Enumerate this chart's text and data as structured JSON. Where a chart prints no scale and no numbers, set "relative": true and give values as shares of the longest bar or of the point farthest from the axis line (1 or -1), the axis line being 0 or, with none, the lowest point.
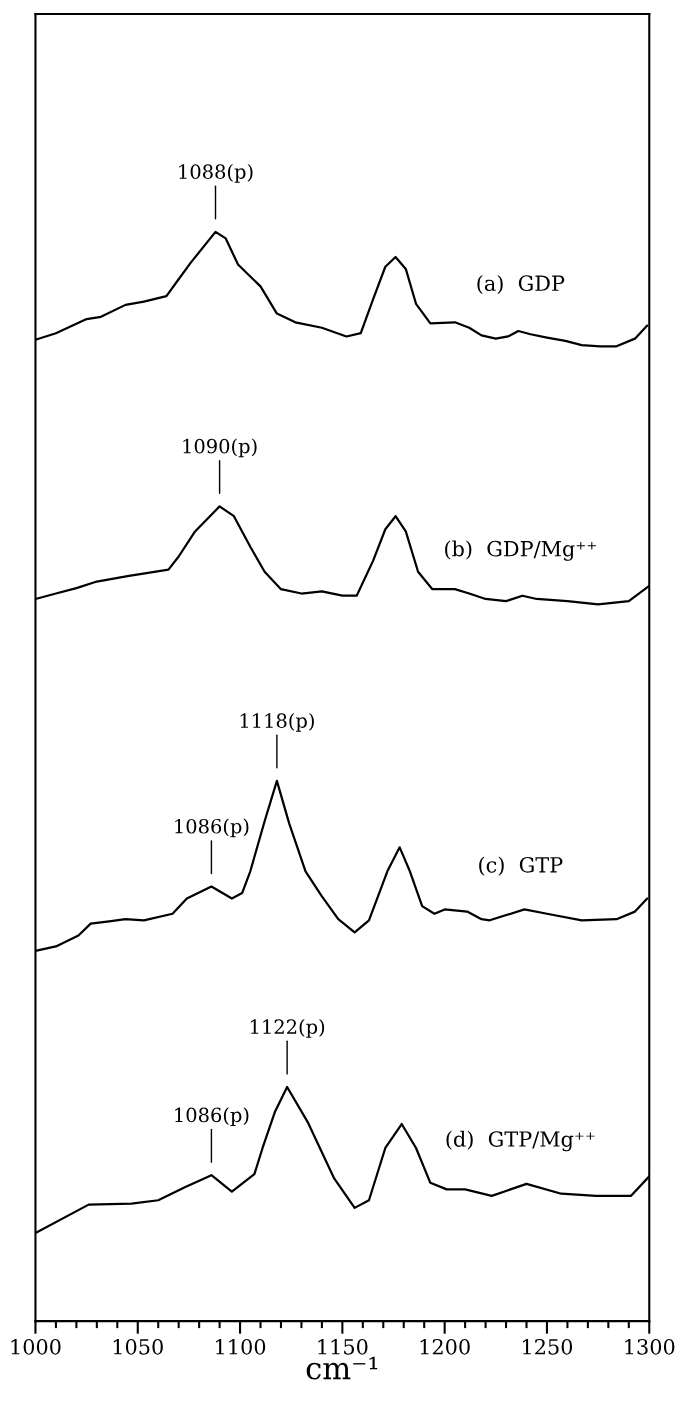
{
  "chart_data": {
    "type": "line",
    "relative": true,
    "xlabel": "cm⁻¹",
    "xlim": [
      1000,
      1300
    ],
    "xticks": [
      1000,
      {
        "value": 1010,
        "label": null
      },
      {
        "value": 1020,
        "label": null
      },
      {
        "value": 1030,
        "label": null
      },
      {
        "value": 1040,
        "label": null
      },
      1050,
      {
        "value": 1060,
        "label": null
      },
      {
        "value": 1070,
        "label": null
      },
      {
        "value": 1080,
        "label": null
      },
      {
        "value": 1090,
        "label": null
      },
      1100,
      {
        "value": 1110,
        "label": null
      },
      {
        "value": 1120,
        "label": null
      },
      {
        "value": 1130,
        "label": null
      },
      {
        "value": 1140,
        "label": null
      },
      1150,
      {
        "value": 1160,
        "label": null
      },
      {
        "value": 1170,
        "label": null
      },
      {
        "value": 1180,
        "label": null
      },
      {
        "value": 1190,
        "label": null
      },
      1200,
      {
        "value": 1210,
        "label": null
      },
      {
        "value": 1220,
        "label": null
      },
      {
        "value": 1230,
        "label": null
      },
      {
        "value": 1240,
        "label": null
      },
      1250,
      {
        "value": 1260,
        "label": null
      },
      {
        "value": 1270,
        "label": null
      },
      {
        "value": 1280,
        "label": null
      },
      {
        "value": 1290,
        "label": null
      },
      1300
    ],
    "grid": false,
    "legend": false,
    "marker": "none",
    "line_style": "solid",
    "series": [
      {
        "name": "(a)  GDP",
        "color": "#000000",
        "x": [
          1000,
          1010,
          1025,
          1032,
          1044,
          1053,
          1064,
          1069,
          1076,
          1088,
          1093,
          1099,
          1105,
          1110,
          1118,
          1127,
          1140,
          1152,
          1159,
          1165,
          1171,
          1176,
          1181,
          1186,
          1193,
          1205,
          1212,
          1218,
          1225,
          1231,
          1236,
          1242,
          1250,
          1259,
          1267,
          1276,
          1284,
          1293,
          1299
        ],
        "values": [
          0.901,
          0.907,
          0.92,
          0.922,
          0.933,
          0.936,
          0.941,
          0.954,
          0.972,
          1.0,
          0.994,
          0.97,
          0.959,
          0.95,
          0.925,
          0.917,
          0.912,
          0.904,
          0.907,
          0.938,
          0.968,
          0.977,
          0.966,
          0.934,
          0.916,
          0.917,
          0.912,
          0.905,
          0.902,
          0.904,
          0.909,
          0.906,
          0.903,
          0.9,
          0.896,
          0.895,
          0.895,
          0.902,
          0.914
        ]
      },
      {
        "name": "(b)  GDP/Mg⁺⁺",
        "color": "#000000",
        "x": [
          1000,
          1010,
          1020,
          1030,
          1045,
          1055,
          1065,
          1070,
          1078,
          1090,
          1097,
          1105,
          1112,
          1120,
          1130,
          1140,
          1150,
          1157,
          1165,
          1171,
          1176,
          1181,
          1187,
          1194,
          1205,
          1212,
          1220,
          1230,
          1238,
          1245,
          1260,
          1275,
          1290,
          1300
        ],
        "values": [
          0.663,
          0.668,
          0.673,
          0.679,
          0.684,
          0.687,
          0.69,
          0.702,
          0.725,
          0.748,
          0.739,
          0.711,
          0.688,
          0.672,
          0.668,
          0.67,
          0.666,
          0.666,
          0.698,
          0.727,
          0.739,
          0.725,
          0.688,
          0.672,
          0.672,
          0.668,
          0.663,
          0.661,
          0.666,
          0.663,
          0.661,
          0.658,
          0.661,
          0.675
        ]
      },
      {
        "name": "(c)  GTP",
        "color": "#000000",
        "x": [
          1000,
          1010,
          1021,
          1027,
          1036,
          1044,
          1053,
          1067,
          1074,
          1086,
          1096,
          1101,
          1105,
          1112,
          1118,
          1124,
          1132,
          1140,
          1148,
          1156,
          1163,
          1172,
          1178,
          1183,
          1189,
          1195,
          1200,
          1211,
          1218,
          1222,
          1239,
          1250,
          1267,
          1284,
          1293,
          1299
        ],
        "values": [
          0.34,
          0.344,
          0.354,
          0.365,
          0.367,
          0.369,
          0.368,
          0.374,
          0.388,
          0.399,
          0.388,
          0.393,
          0.413,
          0.459,
          0.496,
          0.457,
          0.413,
          0.39,
          0.369,
          0.357,
          0.368,
          0.413,
          0.435,
          0.413,
          0.381,
          0.374,
          0.378,
          0.376,
          0.369,
          0.368,
          0.378,
          0.374,
          0.368,
          0.369,
          0.376,
          0.388
        ]
      },
      {
        "name": "(d)  GTP/Mg⁺⁺",
        "color": "#000000",
        "x": [
          1000,
          1026,
          1047,
          1060,
          1073,
          1086,
          1096,
          1107,
          1111,
          1117,
          1123,
          1133,
          1146,
          1156,
          1163,
          1171,
          1179,
          1186,
          1193,
          1201,
          1210,
          1223,
          1240,
          1257,
          1274,
          1291,
          1300
        ],
        "values": [
          0.081,
          0.107,
          0.108,
          0.111,
          0.123,
          0.134,
          0.119,
          0.135,
          0.159,
          0.192,
          0.215,
          0.183,
          0.131,
          0.104,
          0.111,
          0.159,
          0.181,
          0.159,
          0.127,
          0.121,
          0.121,
          0.115,
          0.126,
          0.117,
          0.115,
          0.115,
          0.133
        ]
      }
    ],
    "annotations": [
      {
        "text": "1088(p)",
        "x": 1088,
        "y": 1.0
      },
      {
        "text": "1090(p)",
        "x": 1090,
        "y": 0.748
      },
      {
        "text": "1118(p)",
        "x": 1118,
        "y": 0.496
      },
      {
        "text": "1086(p)",
        "x": 1086,
        "y": 0.399
      },
      {
        "text": "1122(p)",
        "x": 1123,
        "y": 0.215
      },
      {
        "text": "1086(p)",
        "x": 1086,
        "y": 0.134
      }
    ]
  }
}
